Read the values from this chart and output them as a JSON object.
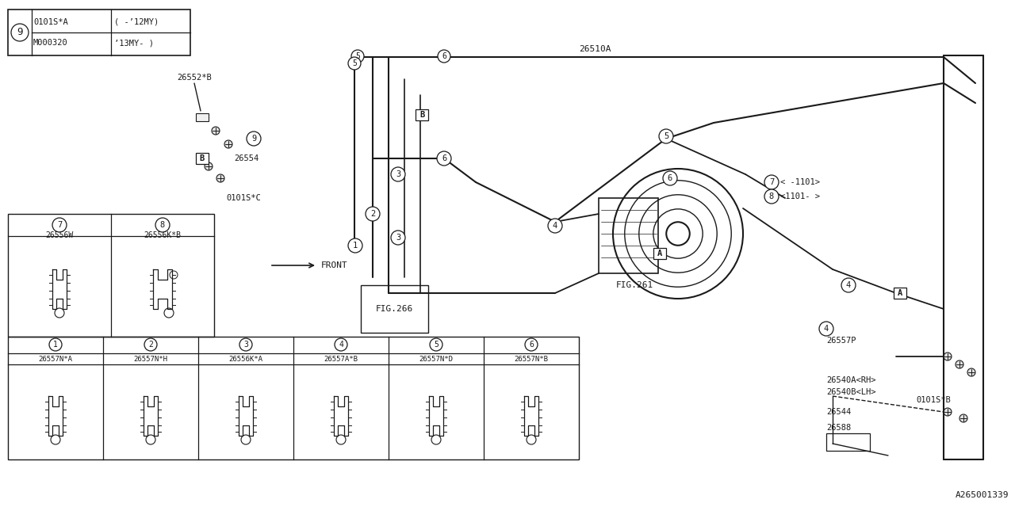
{
  "bg_color": "#ffffff",
  "line_color": "#1a1a1a",
  "fig_id": "A265001339",
  "top_table": {
    "circle_num": "9",
    "row1_col1": "0101S*A",
    "row1_col2": "( -’12MY)",
    "row2_col1": "M000320",
    "row2_col2": "’13MY- )"
  },
  "table78": {
    "col7_num": "7",
    "col7_part": "26556W",
    "col8_num": "8",
    "col8_part": "26556K*B"
  },
  "table16": [
    {
      "num": "1",
      "part": "26557N*A"
    },
    {
      "num": "2",
      "part": "26557N*H"
    },
    {
      "num": "3",
      "part": "26556K*A"
    },
    {
      "num": "4",
      "part": "26557A*B"
    },
    {
      "num": "5",
      "part": "26557N*D"
    },
    {
      "num": "6",
      "part": "26557N*B"
    }
  ],
  "labels": {
    "26552B": "26552*B",
    "26554": "26554",
    "0101SC": "0101S*C",
    "26510A": "26510A",
    "FIG266": "FIG.266",
    "FIG261": "FIG.261",
    "FRONT": "FRONT",
    "26557P": "26557P",
    "26540A": "26540A<RH>",
    "26540B": "26540B<LH>",
    "26544": "26544",
    "26588": "26588",
    "0101SB": "0101S*B",
    "fig_id": "A265001339",
    "7note": "7< -1101>",
    "8note": "8<1101- >"
  }
}
